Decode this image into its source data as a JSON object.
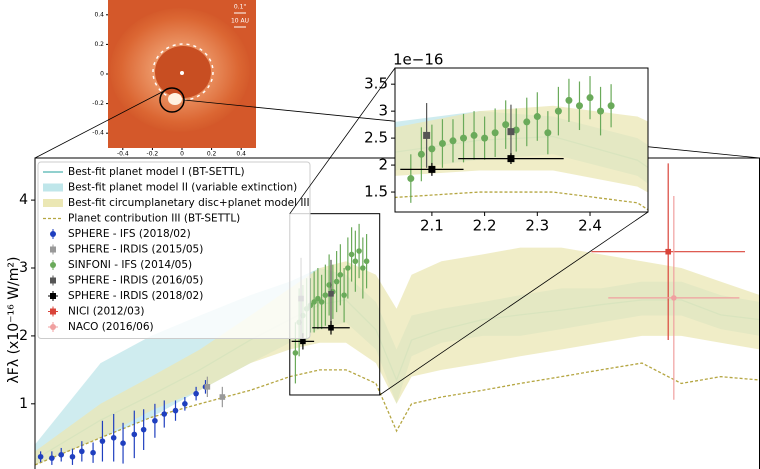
{
  "chart_data": [
    {
      "type": "sed",
      "ylabel": "λFλ (x10⁻¹⁶ W/m²)",
      "xlim": [
        0.67,
        4.54
      ],
      "ylim": [
        0.04,
        4.62
      ],
      "yticks": [
        1,
        2,
        3,
        4
      ],
      "legend": "upper left",
      "series": [
        {
          "name": "Best-fit planet model I (BT-SETTL)",
          "type": "line",
          "color": "#4fb3b0",
          "x": [
            0.67,
            1.02,
            1.29,
            1.55,
            1.82,
            2.03,
            2.19,
            2.33,
            2.49,
            2.6,
            2.68,
            2.84,
            3.06,
            3.26,
            3.48,
            3.69,
            3.91,
            4.12,
            4.33,
            4.54
          ],
          "values": [
            0.18,
            0.76,
            1.13,
            1.5,
            1.94,
            2.24,
            2.46,
            2.53,
            2.09,
            1.35,
            1.94,
            2.09,
            2.24,
            2.31,
            2.38,
            2.46,
            2.53,
            2.53,
            2.31,
            2.24
          ]
        },
        {
          "name": "Best-fit planet model II (variable extinction)",
          "type": "band",
          "color": "#bfe6ea",
          "x": [
            0.67,
            1.02,
            1.29,
            1.55,
            1.82,
            2.03,
            2.19,
            2.33,
            2.49,
            2.6,
            2.68,
            2.84,
            3.06,
            3.26,
            3.48,
            3.69,
            3.91,
            4.12,
            4.33,
            4.54
          ],
          "lower": [
            0.1,
            0.5,
            0.8,
            1.2,
            1.6,
            1.9,
            2.1,
            2.2,
            1.8,
            1.0,
            1.7,
            1.9,
            2.0,
            2.0,
            2.1,
            2.2,
            2.3,
            2.3,
            2.1,
            2.0
          ],
          "upper": [
            0.4,
            1.6,
            2.0,
            2.3,
            2.6,
            2.8,
            3.0,
            2.9,
            2.5,
            1.8,
            2.3,
            2.4,
            2.5,
            2.6,
            2.7,
            2.7,
            2.8,
            2.8,
            2.6,
            2.5
          ]
        },
        {
          "name": "Best-fit circumplanetary disc+planet model III",
          "type": "band",
          "color": "#ebe7b4",
          "x": [
            0.67,
            1.02,
            1.29,
            1.55,
            1.82,
            2.03,
            2.19,
            2.33,
            2.49,
            2.6,
            2.68,
            2.84,
            3.06,
            3.26,
            3.48,
            3.69,
            3.91,
            4.12,
            4.33,
            4.54
          ],
          "lower": [
            0.1,
            0.5,
            0.9,
            1.2,
            1.6,
            1.8,
            1.9,
            1.9,
            1.6,
            1.0,
            1.4,
            1.5,
            1.6,
            1.7,
            1.8,
            1.9,
            2.0,
            2.0,
            1.9,
            1.8
          ],
          "upper": [
            0.3,
            1.0,
            1.4,
            1.8,
            2.3,
            2.7,
            3.0,
            3.1,
            2.9,
            2.4,
            2.9,
            3.1,
            3.2,
            3.3,
            3.3,
            3.2,
            3.1,
            3.0,
            2.8,
            2.6
          ]
        },
        {
          "name": "Planet contribution III (BT-SETTL)",
          "type": "line",
          "style": "dashed",
          "color": "#b5a642",
          "x": [
            0.67,
            1.02,
            1.29,
            1.55,
            1.82,
            2.03,
            2.19,
            2.33,
            2.49,
            2.6,
            2.68,
            2.84,
            3.06,
            3.26,
            3.48,
            3.69,
            3.91,
            4.12,
            4.33,
            4.54
          ],
          "values": [
            0.1,
            0.5,
            0.8,
            1.0,
            1.2,
            1.4,
            1.5,
            1.5,
            1.3,
            0.6,
            1.0,
            1.1,
            1.2,
            1.3,
            1.4,
            1.5,
            1.6,
            1.3,
            1.4,
            1.35
          ]
        },
        {
          "name": "SPHERE - IFS (2018/02)",
          "type": "errorbar",
          "marker": "circle",
          "color": "#1f3fbf",
          "x": [
            0.7,
            0.76,
            0.81,
            0.87,
            0.92,
            0.98,
            1.03,
            1.09,
            1.14,
            1.2,
            1.25,
            1.31,
            1.36,
            1.42,
            1.47,
            1.53,
            1.58
          ],
          "values": [
            0.22,
            0.2,
            0.25,
            0.22,
            0.3,
            0.28,
            0.45,
            0.5,
            0.42,
            0.55,
            0.62,
            0.75,
            0.85,
            0.9,
            1.0,
            1.15,
            1.25
          ],
          "errors": [
            0.08,
            0.1,
            0.1,
            0.12,
            0.15,
            0.15,
            0.3,
            0.35,
            0.3,
            0.35,
            0.3,
            0.25,
            0.2,
            0.15,
            0.1,
            0.1,
            0.1
          ]
        },
        {
          "name": "SPHERE - IRDIS (2015/05)",
          "type": "errorbar",
          "marker": "square",
          "color": "#999999",
          "x": [
            1.59,
            1.67
          ],
          "values": [
            1.25,
            1.1
          ],
          "errors": [
            0.15,
            0.15
          ]
        },
        {
          "name": "SINFONI - IFS (2014/05)",
          "type": "errorbar",
          "marker": "circle",
          "color": "#6aaa5a",
          "x": [
            2.06,
            2.08,
            2.1,
            2.12,
            2.14,
            2.16,
            2.18,
            2.2,
            2.22,
            2.24,
            2.26,
            2.28,
            2.3,
            2.32,
            2.34,
            2.36,
            2.38,
            2.4,
            2.42,
            2.44
          ],
          "values": [
            1.75,
            2.2,
            2.3,
            2.4,
            2.45,
            2.5,
            2.55,
            2.5,
            2.6,
            2.75,
            2.65,
            2.8,
            2.9,
            2.6,
            3.0,
            3.2,
            3.1,
            3.25,
            3.0,
            3.1
          ],
          "errors": [
            0.45,
            0.5,
            0.45,
            0.45,
            0.4,
            0.45,
            0.45,
            0.4,
            0.45,
            0.45,
            0.4,
            0.45,
            0.45,
            0.4,
            0.45,
            0.4,
            0.45,
            0.4,
            0.45,
            0.4
          ]
        },
        {
          "name": "SPHERE - IRDIS (2016/05)",
          "type": "errorbar",
          "marker": "square",
          "color": "#555555",
          "x": [
            2.09,
            2.25
          ],
          "values": [
            2.55,
            2.62
          ],
          "errors": [
            0.6,
            0.5
          ]
        },
        {
          "name": "SPHERE - IRDIS (2018/02)",
          "type": "errorbar",
          "marker": "square",
          "color": "#000000",
          "x": [
            2.1,
            2.25
          ],
          "values": [
            1.92,
            2.12
          ],
          "errors": [
            0.12,
            0.1
          ],
          "xerrors": [
            0.06,
            0.1
          ]
        },
        {
          "name": "NICI (2012/03)",
          "type": "errorbar",
          "marker": "square",
          "color": "#d9443a",
          "x": [
            4.05
          ],
          "values": [
            3.24
          ],
          "errors": [
            1.3
          ],
          "xerrors": [
            0.41
          ]
        },
        {
          "name": "NACO (2016/06)",
          "type": "errorbar",
          "marker": "circle",
          "color": "#f0a0a0",
          "x": [
            4.08
          ],
          "values": [
            2.56
          ],
          "errors": [
            1.5
          ],
          "xerrors": [
            0.35
          ]
        }
      ]
    },
    {
      "type": "inset",
      "offset_label": "1e−16",
      "xlim": [
        2.03,
        2.51
      ],
      "ylim": [
        1.13,
        3.8
      ],
      "xticks": [
        2.1,
        2.2,
        2.3,
        2.4
      ],
      "yticks": [
        1.5,
        2.0,
        2.5,
        3.0,
        3.5
      ]
    },
    {
      "type": "image",
      "xlim": [
        -0.5,
        0.5
      ],
      "ylim": [
        -0.5,
        0.5
      ],
      "xticks": [
        -0.4,
        -0.2,
        0,
        0.2,
        0.4
      ],
      "yticks": [
        -0.4,
        -0.2,
        0,
        0.2,
        0.4
      ],
      "annotations": [
        "0.1\"",
        "10 AU"
      ]
    }
  ]
}
